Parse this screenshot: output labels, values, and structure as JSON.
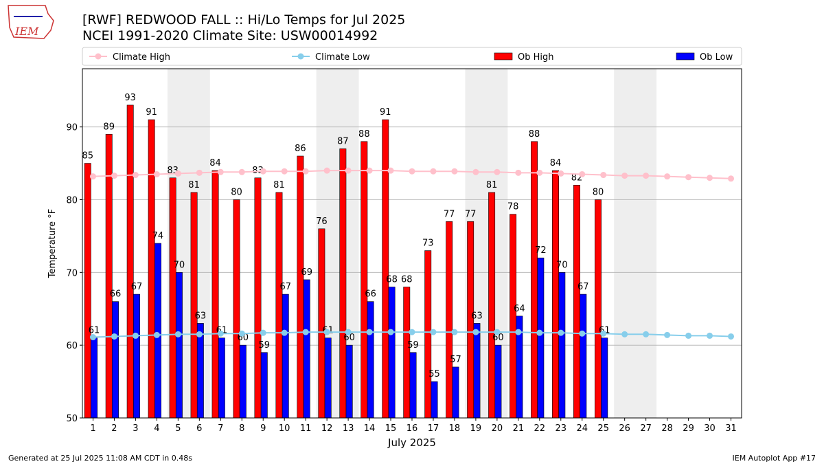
{
  "chart_data": {
    "type": "bar-line",
    "title": "[RWF] REDWOOD FALL :: Hi/Lo Temps for Jul 2025",
    "subtitle": "NCEI 1991-2020 Climate Site: USW00014992",
    "x_label": "July 2025",
    "y_label": "Temperature °F",
    "footer_left": "Generated at 25 Jul 2025 11:08 AM CDT in 0.48s",
    "footer_right": "IEM Autoplot App #17",
    "logo_text": "IEM",
    "x": [
      1,
      2,
      3,
      4,
      5,
      6,
      7,
      8,
      9,
      10,
      11,
      12,
      13,
      14,
      15,
      16,
      17,
      18,
      19,
      20,
      21,
      22,
      23,
      24,
      25,
      26,
      27,
      28,
      29,
      30,
      31
    ],
    "xlim": [
      0.5,
      31.5
    ],
    "xticks": [
      1,
      2,
      3,
      4,
      5,
      6,
      7,
      8,
      9,
      10,
      11,
      12,
      13,
      14,
      15,
      16,
      17,
      18,
      19,
      20,
      21,
      22,
      23,
      24,
      25,
      26,
      27,
      28,
      29,
      30,
      31
    ],
    "ylim": [
      50,
      98
    ],
    "yticks": [
      50,
      60,
      70,
      80,
      90
    ],
    "grid": true,
    "weekend_shading": [
      [
        5,
        6
      ],
      [
        12,
        13
      ],
      [
        19,
        20
      ],
      [
        26,
        27
      ]
    ],
    "shade_color": "#eeeeee",
    "series": [
      {
        "name": "Climate High",
        "kind": "line",
        "color": "#ffc0cb",
        "values": [
          83.2,
          83.3,
          83.4,
          83.5,
          83.6,
          83.7,
          83.8,
          83.8,
          83.9,
          83.9,
          83.9,
          84.0,
          84.0,
          84.0,
          84.0,
          83.9,
          83.9,
          83.9,
          83.8,
          83.8,
          83.7,
          83.7,
          83.6,
          83.5,
          83.4,
          83.3,
          83.3,
          83.2,
          83.1,
          83.0,
          82.9
        ]
      },
      {
        "name": "Climate Low",
        "kind": "line",
        "color": "#87ceeb",
        "values": [
          61.1,
          61.2,
          61.3,
          61.4,
          61.5,
          61.5,
          61.6,
          61.6,
          61.7,
          61.7,
          61.8,
          61.8,
          61.8,
          61.8,
          61.8,
          61.8,
          61.8,
          61.8,
          61.8,
          61.8,
          61.8,
          61.7,
          61.7,
          61.6,
          61.6,
          61.5,
          61.5,
          61.4,
          61.3,
          61.3,
          61.2
        ]
      },
      {
        "name": "Ob High",
        "kind": "bar",
        "color": "#ff0000",
        "values": [
          85,
          89,
          93,
          91,
          83,
          81,
          84,
          80,
          83,
          81,
          86,
          76,
          87,
          88,
          91,
          68,
          73,
          77,
          77,
          81,
          78,
          88,
          84,
          82,
          80,
          null,
          null,
          null,
          null,
          null,
          null
        ]
      },
      {
        "name": "Ob Low",
        "kind": "bar",
        "color": "#0000ff",
        "values": [
          61,
          66,
          67,
          74,
          70,
          63,
          61,
          60,
          59,
          67,
          69,
          61,
          60,
          66,
          68,
          59,
          55,
          57,
          63,
          60,
          64,
          72,
          70,
          67,
          61,
          null,
          null,
          null,
          null,
          null,
          null
        ]
      }
    ]
  }
}
